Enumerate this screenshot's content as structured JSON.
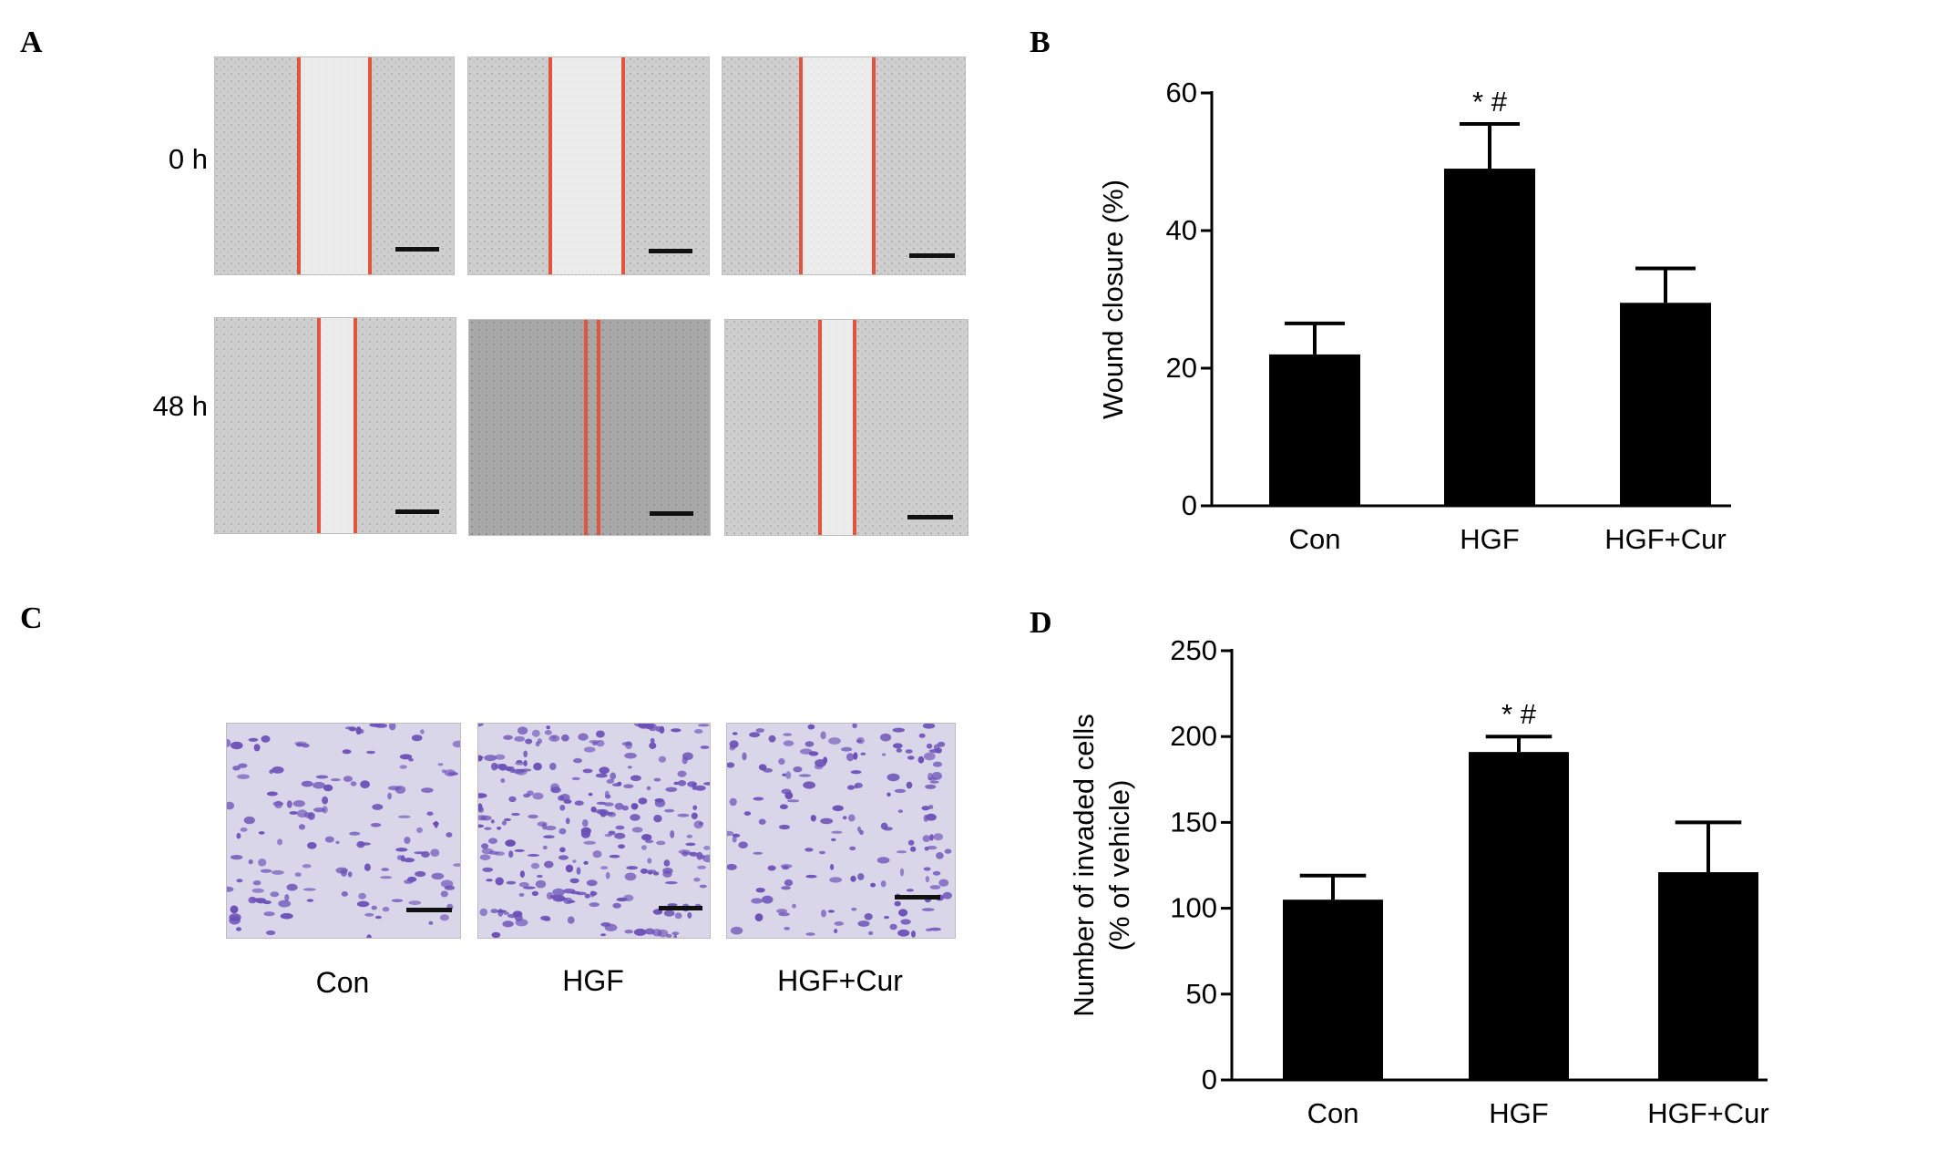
{
  "panels": {
    "A": {
      "letter": "A",
      "row_labels": [
        "0 h",
        "48 h"
      ]
    },
    "B": {
      "letter": "B"
    },
    "C": {
      "letter": "C",
      "captions": [
        "Con",
        "HGF",
        "HGF+Cur"
      ]
    },
    "D": {
      "letter": "D"
    }
  },
  "colors": {
    "wound_edge": "#e2543e",
    "crystal_violet": "#6b4fb7",
    "bar_fill": "#000000"
  },
  "chart_data": [
    {
      "panel": "B",
      "type": "bar",
      "categories": [
        "Con",
        "HGF",
        "HGF+Cur"
      ],
      "values": [
        22,
        49,
        29.5
      ],
      "errors": [
        4.5,
        6.5,
        5
      ],
      "annotations": [
        "",
        "* #",
        ""
      ],
      "ylabel": "Wound closure (%)",
      "ylim": [
        0,
        60
      ],
      "yticks": [
        "0",
        "20",
        "40",
        "60"
      ],
      "grid": false
    },
    {
      "panel": "D",
      "type": "bar",
      "categories": [
        "Con",
        "HGF",
        "HGF+Cur"
      ],
      "values": [
        105,
        191,
        121
      ],
      "errors": [
        14,
        9,
        29
      ],
      "annotations": [
        "",
        "* #",
        ""
      ],
      "ylabel": [
        "Number of invaded cells",
        "(% of vehicle)"
      ],
      "ylim": [
        0,
        250
      ],
      "yticks": [
        "0",
        "50",
        "100",
        "150",
        "200",
        "250"
      ],
      "grid": false
    }
  ]
}
